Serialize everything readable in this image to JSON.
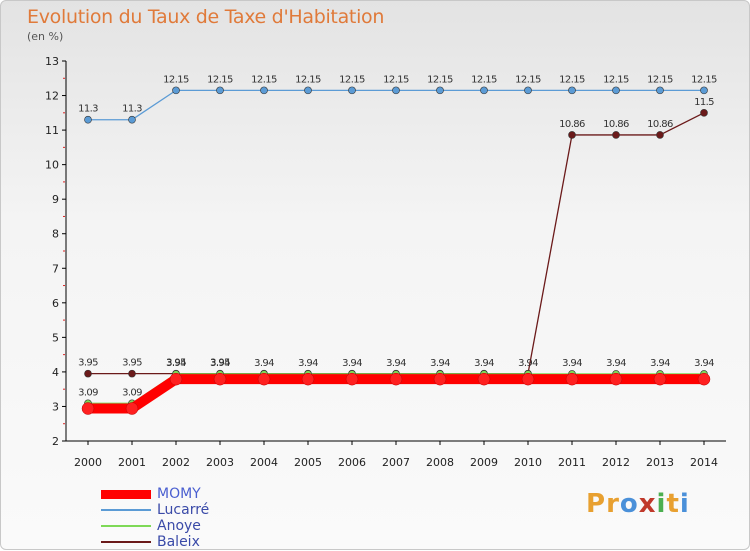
{
  "title": "Evolution du Taux de Taxe d'Habitation",
  "unit_label": "(en %)",
  "logo": {
    "text": "Proxiti",
    "colors": [
      "#e8a030",
      "#e8a030",
      "#4a90d9",
      "#c0392b",
      "#4caf50",
      "#e8a030",
      "#4a90d9"
    ]
  },
  "chart_data": {
    "type": "line",
    "title": "Evolution du Taux de Taxe d'Habitation",
    "ylabel": "(en %)",
    "xlabel": "",
    "x": [
      "2000",
      "2001",
      "2002",
      "2003",
      "2004",
      "2005",
      "2006",
      "2007",
      "2008",
      "2009",
      "2010",
      "2011",
      "2012",
      "2013",
      "2014"
    ],
    "ylim": [
      2,
      13
    ],
    "yticks": [
      "2",
      "3",
      "4",
      "5",
      "6",
      "7",
      "8",
      "9",
      "10",
      "11",
      "12",
      "13"
    ],
    "grid": false,
    "legend_position": "bottom-left",
    "series": [
      {
        "name": "MOMY",
        "color": "#ff0000",
        "values": [
          2.94,
          2.94,
          3.79,
          3.79,
          3.79,
          3.79,
          3.79,
          3.79,
          3.79,
          3.79,
          3.79,
          3.79,
          3.79,
          3.79,
          3.79
        ],
        "labels": [],
        "label_position": "below"
      },
      {
        "name": "Lucarré",
        "color": "#5b9bd5",
        "values": [
          11.3,
          11.3,
          12.15,
          12.15,
          12.15,
          12.15,
          12.15,
          12.15,
          12.15,
          12.15,
          12.15,
          12.15,
          12.15,
          12.15,
          12.15
        ],
        "labels": [
          "11.3",
          "11.3",
          "12.15",
          "12.15",
          "12.15",
          "12.15",
          "12.15",
          "12.15",
          "12.15",
          "12.15",
          "12.15",
          "12.15",
          "12.15",
          "12.15",
          "12.15"
        ],
        "label_position": "above"
      },
      {
        "name": "Anoye",
        "color": "#7ed957",
        "values": [
          3.09,
          3.09,
          3.94,
          3.94,
          3.94,
          3.94,
          3.94,
          3.94,
          3.94,
          3.94,
          3.94,
          3.94,
          3.94,
          3.94,
          3.94
        ],
        "labels": [
          "3.09",
          "3.09",
          "3.94",
          "3.94",
          "3.94",
          "3.94",
          "3.94",
          "3.94",
          "3.94",
          "3.94",
          "3.94",
          "3.94",
          "3.94",
          "3.94",
          "3.94"
        ],
        "label_position": "above"
      },
      {
        "name": "Baleix",
        "color": "#6b1a1a",
        "values": [
          3.95,
          3.95,
          3.95,
          3.95,
          3.95,
          3.95,
          3.95,
          3.95,
          3.95,
          3.95,
          3.95,
          10.86,
          10.86,
          10.86,
          11.5
        ],
        "labels": [
          "3.95",
          "3.95",
          "3.95",
          "3.95",
          "",
          "",
          "",
          "",
          "",
          "",
          "",
          "10.86",
          "10.86",
          "10.86",
          "11.5"
        ],
        "label_position": "above"
      }
    ]
  }
}
